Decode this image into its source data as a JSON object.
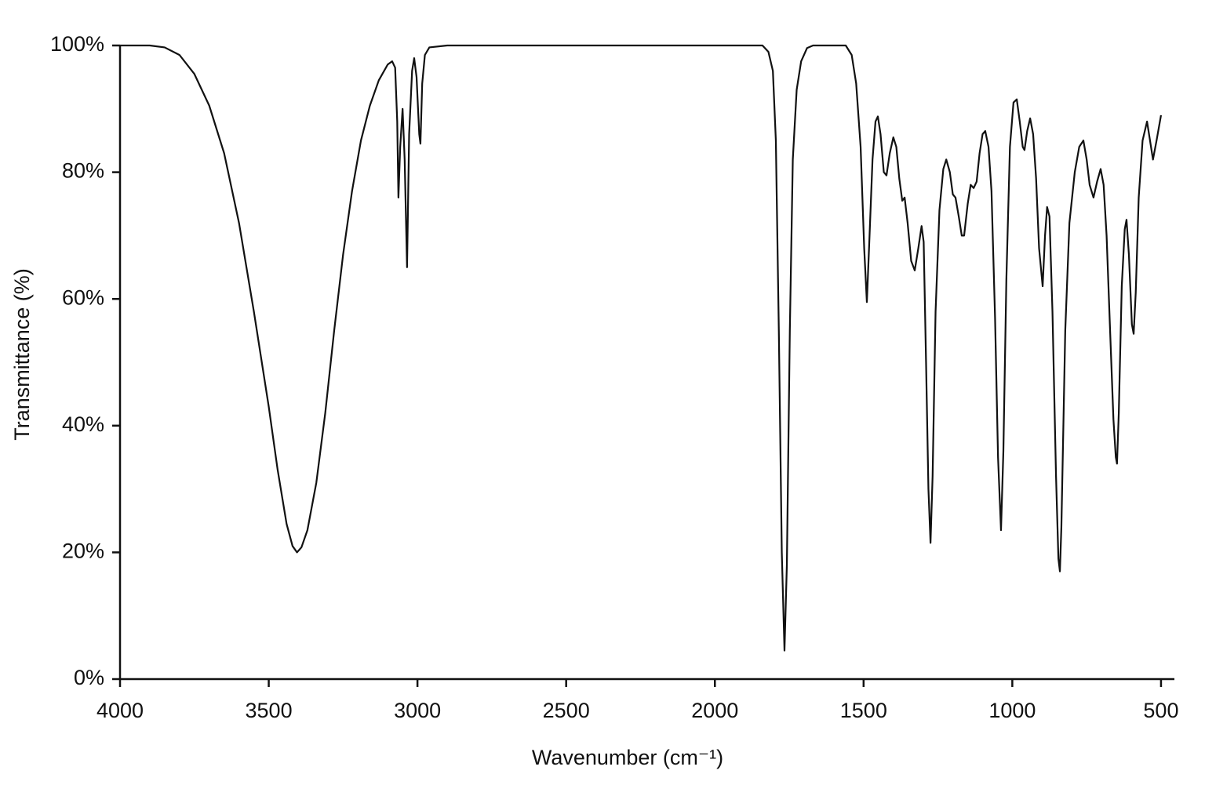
{
  "chart_data": {
    "type": "line",
    "x_label": "Wavenumber (cm⁻¹)",
    "y_label": "Transmittance (%)",
    "xlim": [
      4000,
      455
    ],
    "ylim": [
      0,
      100
    ],
    "xticks": [
      4000,
      3500,
      3000,
      2500,
      2000,
      1500,
      1000,
      500
    ],
    "yticks": [
      {
        "value": 0,
        "label": "0%"
      },
      {
        "value": 20,
        "label": "20%"
      },
      {
        "value": 40,
        "label": "40%"
      },
      {
        "value": 60,
        "label": "60%"
      },
      {
        "value": 80,
        "label": "80%"
      },
      {
        "value": 100,
        "label": "100%"
      }
    ],
    "grid": false,
    "series": [
      {
        "color": "#111111",
        "x": [
          4000,
          3900,
          3850,
          3800,
          3750,
          3700,
          3650,
          3600,
          3550,
          3500,
          3470,
          3440,
          3420,
          3405,
          3390,
          3370,
          3340,
          3310,
          3280,
          3250,
          3220,
          3190,
          3160,
          3130,
          3100,
          3085,
          3075,
          3068,
          3064,
          3058,
          3050,
          3043,
          3035,
          3028,
          3018,
          3011,
          3003,
          2994,
          2990,
          2984,
          2975,
          2960,
          2900,
          1840,
          1820,
          1805,
          1795,
          1785,
          1775,
          1766,
          1758,
          1748,
          1738,
          1725,
          1710,
          1690,
          1670,
          1560,
          1540,
          1525,
          1510,
          1498,
          1489,
          1480,
          1470,
          1460,
          1452,
          1443,
          1432,
          1423,
          1412,
          1400,
          1390,
          1380,
          1370,
          1362,
          1352,
          1340,
          1328,
          1316,
          1305,
          1298,
          1290,
          1282,
          1275,
          1268,
          1258,
          1245,
          1232,
          1222,
          1210,
          1200,
          1191,
          1180,
          1170,
          1162,
          1150,
          1140,
          1130,
          1120,
          1110,
          1100,
          1091,
          1080,
          1070,
          1058,
          1048,
          1038,
          1030,
          1020,
          1008,
          996,
          985,
          975,
          965,
          959,
          950,
          940,
          930,
          920,
          910,
          898,
          890,
          883,
          875,
          865,
          853,
          845,
          840,
          835,
          822,
          808,
          790,
          775,
          761,
          750,
          740,
          727,
          715,
          703,
          693,
          683,
          672,
          660,
          652,
          648,
          642,
          632,
          622,
          616,
          608,
          598,
          592,
          585,
          575,
          562,
          547,
          537,
          527,
          515,
          500
        ],
        "values": [
          100,
          100,
          99.7,
          98.5,
          95.5,
          90.5,
          83,
          72,
          58,
          43,
          33,
          24.5,
          21,
          20,
          20.8,
          23.5,
          31,
          42,
          55,
          67,
          77,
          85,
          90.5,
          94.5,
          97,
          97.5,
          96.5,
          88,
          76,
          84,
          90,
          82,
          65,
          86,
          96,
          98,
          95,
          86,
          84.5,
          94,
          98.5,
          99.7,
          100,
          100,
          99,
          96,
          85,
          55,
          20,
          4.5,
          18,
          55,
          82,
          93,
          97.5,
          99.6,
          100,
          100,
          98.5,
          94,
          84,
          68,
          59.5,
          70,
          82,
          88,
          88.8,
          86,
          80,
          79.5,
          83,
          85.5,
          84,
          79,
          75.5,
          76,
          72,
          66,
          64.5,
          68,
          71.5,
          69,
          50,
          30,
          21.5,
          32,
          58,
          74,
          80.5,
          82,
          80,
          76.5,
          76,
          73,
          70,
          70,
          75,
          78,
          77.5,
          78.5,
          83,
          86,
          86.5,
          84,
          77,
          57,
          35,
          23.5,
          36,
          63,
          84,
          91,
          91.5,
          88,
          84,
          83.5,
          86.5,
          88.5,
          86,
          79,
          68,
          62,
          70,
          74.5,
          73,
          58,
          32,
          19,
          17,
          24,
          55,
          72,
          80,
          84,
          85,
          82,
          78,
          76,
          78.5,
          80.5,
          78,
          70,
          56,
          41,
          35,
          34,
          42,
          62,
          71,
          72.5,
          67,
          56,
          54.5,
          61,
          76,
          85,
          88,
          85,
          82,
          85,
          89
        ]
      }
    ]
  }
}
